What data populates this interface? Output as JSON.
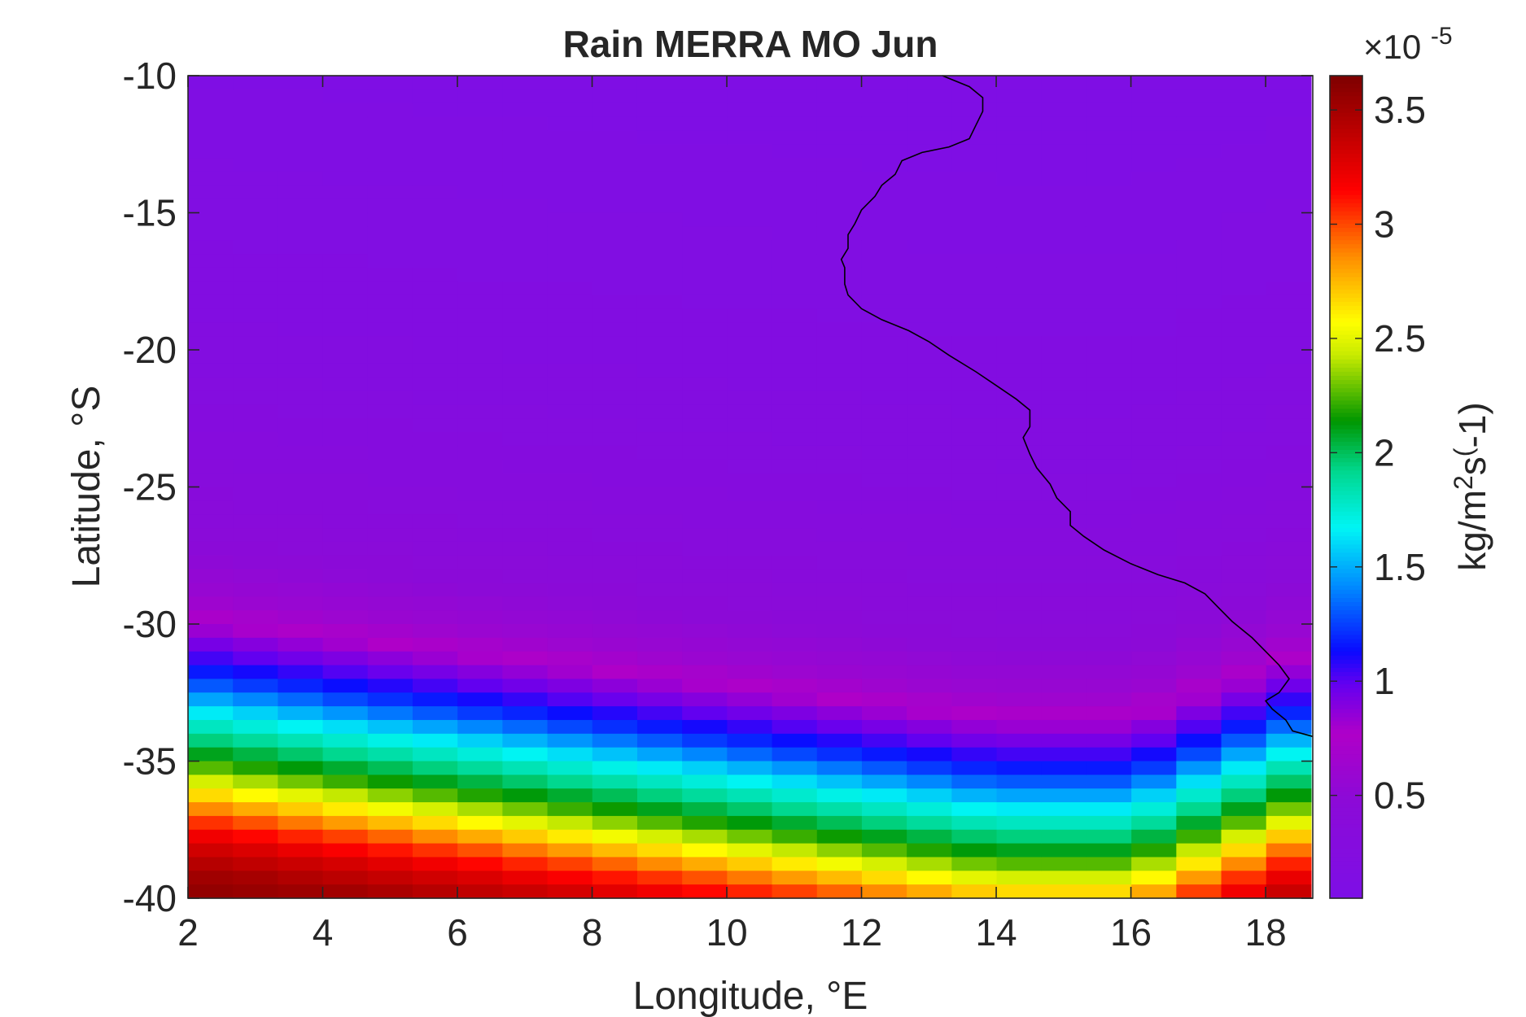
{
  "chart_data": {
    "type": "heatmap",
    "title": "Rain MERRA MO Jun",
    "xlabel": "Longitude, °E",
    "ylabel": "Latitude, °S",
    "xlim": [
      2,
      18.7
    ],
    "ylim": [
      -40,
      -10
    ],
    "xticks": [
      2,
      4,
      6,
      8,
      10,
      12,
      14,
      16,
      18
    ],
    "yticks": [
      -40,
      -35,
      -30,
      -25,
      -20,
      -15,
      -10
    ],
    "colorbar": {
      "label": "kg/m^2s^(-1)",
      "label_parts": {
        "a": "kg/m",
        "sup1": "2",
        "b": "s",
        "sup2": "(",
        "c": "-1)"
      },
      "exponent_prefix": "×10",
      "exponent": "-5",
      "multiplier": 1e-05,
      "range": [
        0.05,
        3.65
      ],
      "ticks": [
        0.5,
        1,
        1.5,
        2,
        2.5,
        3,
        3.5
      ],
      "tick_labels": [
        "0.5",
        "1",
        "1.5",
        "2",
        "2.5",
        "3",
        "3.5"
      ],
      "colormap": "jet-like (purple-blue-cyan-green-yellow-red-darkred)"
    },
    "grid": {
      "lon_start": 2,
      "lon_step": 0.667,
      "ncols": 25,
      "lat_start": -10,
      "lat_step": -0.5,
      "nrows": 60
    },
    "lat_profile": [
      {
        "lat": -10,
        "value": 0.12
      },
      {
        "lat": -20,
        "value": 0.22
      },
      {
        "lat": -25,
        "value": 0.35
      },
      {
        "lat": -27,
        "value": 0.45
      },
      {
        "lat": -29,
        "value": 0.6
      },
      {
        "lat": -30,
        "value": 0.8
      },
      {
        "lat": -31,
        "value": 1.0
      },
      {
        "lat": -32,
        "value": 1.25
      },
      {
        "lat": -33,
        "value": 1.6
      },
      {
        "lat": -34,
        "value": 1.9
      },
      {
        "lat": -35,
        "value": 2.2
      },
      {
        "lat": -36,
        "value": 2.6
      },
      {
        "lat": -37,
        "value": 3.0
      },
      {
        "lat": -38,
        "value": 3.3
      },
      {
        "lat": -39,
        "value": 3.5
      },
      {
        "lat": -40,
        "value": 3.6
      }
    ],
    "profile_lat_shift_per_degree_lon": 0.3,
    "profile_shift_center_lon": 2,
    "profile_shift_max_lon": 14,
    "special_cells": [
      {
        "lon": 18.0,
        "lat": -30.5,
        "value": 1.0
      },
      {
        "lon": 18.0,
        "lat": -31.0,
        "value": 1.0
      },
      {
        "lon": 18.7,
        "lat": -32.5,
        "value": 1.3
      }
    ],
    "coastline": [
      [
        13.2,
        -10.0
      ],
      [
        13.6,
        -10.4
      ],
      [
        13.8,
        -10.8
      ],
      [
        13.8,
        -11.3
      ],
      [
        13.7,
        -11.8
      ],
      [
        13.6,
        -12.3
      ],
      [
        13.3,
        -12.6
      ],
      [
        12.9,
        -12.8
      ],
      [
        12.6,
        -13.1
      ],
      [
        12.5,
        -13.6
      ],
      [
        12.3,
        -14.0
      ],
      [
        12.2,
        -14.4
      ],
      [
        12.0,
        -14.9
      ],
      [
        11.9,
        -15.4
      ],
      [
        11.8,
        -15.8
      ],
      [
        11.8,
        -16.3
      ],
      [
        11.7,
        -16.7
      ],
      [
        11.75,
        -17.0
      ],
      [
        11.75,
        -17.6
      ],
      [
        11.8,
        -18.0
      ],
      [
        12.0,
        -18.5
      ],
      [
        12.3,
        -18.9
      ],
      [
        12.7,
        -19.3
      ],
      [
        13.0,
        -19.7
      ],
      [
        13.3,
        -20.2
      ],
      [
        13.7,
        -20.8
      ],
      [
        14.0,
        -21.3
      ],
      [
        14.3,
        -21.8
      ],
      [
        14.5,
        -22.2
      ],
      [
        14.5,
        -22.8
      ],
      [
        14.4,
        -23.2
      ],
      [
        14.5,
        -23.8
      ],
      [
        14.6,
        -24.3
      ],
      [
        14.8,
        -24.9
      ],
      [
        14.9,
        -25.4
      ],
      [
        15.1,
        -25.9
      ],
      [
        15.1,
        -26.4
      ],
      [
        15.3,
        -26.8
      ],
      [
        15.6,
        -27.3
      ],
      [
        16.0,
        -27.8
      ],
      [
        16.4,
        -28.2
      ],
      [
        16.8,
        -28.5
      ],
      [
        17.1,
        -28.9
      ],
      [
        17.3,
        -29.4
      ],
      [
        17.5,
        -29.9
      ],
      [
        17.8,
        -30.5
      ],
      [
        18.0,
        -31.0
      ],
      [
        18.2,
        -31.5
      ],
      [
        18.35,
        -32.0
      ],
      [
        18.2,
        -32.5
      ],
      [
        18.0,
        -32.8
      ],
      [
        18.1,
        -33.1
      ],
      [
        18.3,
        -33.5
      ],
      [
        18.4,
        -33.9
      ],
      [
        18.7,
        -34.1
      ]
    ]
  }
}
